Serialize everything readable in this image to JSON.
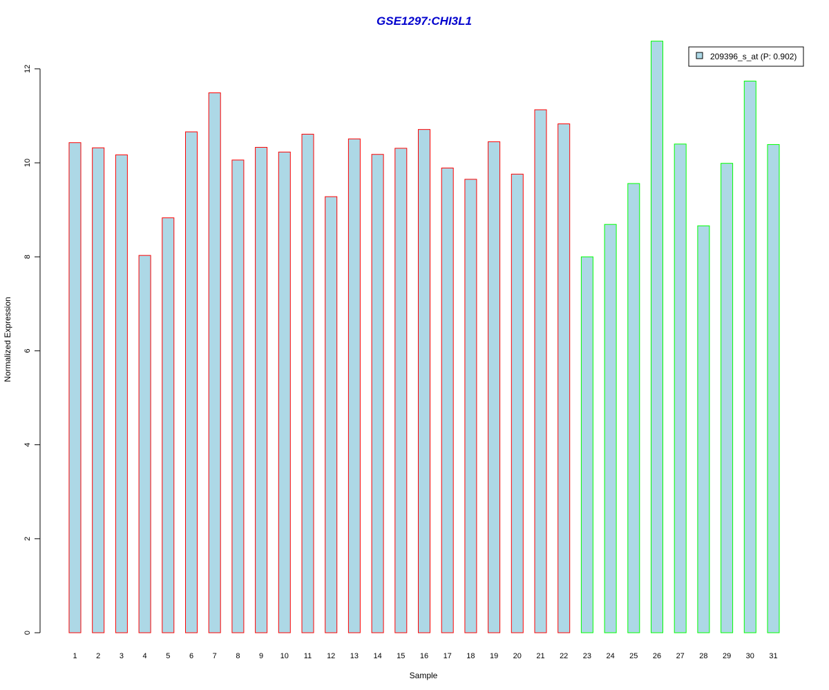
{
  "chart_data": {
    "type": "bar",
    "title": "GSE1297:CHI3L1",
    "xlabel": "Sample",
    "ylabel": "Normalized Expression",
    "categories": [
      "1",
      "2",
      "3",
      "4",
      "5",
      "6",
      "7",
      "8",
      "9",
      "10",
      "11",
      "12",
      "13",
      "14",
      "15",
      "16",
      "17",
      "18",
      "19",
      "20",
      "21",
      "22",
      "23",
      "24",
      "25",
      "26",
      "27",
      "28",
      "29",
      "30",
      "31"
    ],
    "series": [
      {
        "name": "209396_s_at (P: 0.902)",
        "values": [
          10.43,
          10.32,
          10.17,
          8.03,
          8.83,
          10.66,
          11.49,
          10.06,
          10.33,
          10.23,
          10.61,
          9.28,
          10.51,
          10.18,
          10.31,
          10.71,
          9.89,
          9.65,
          10.45,
          9.76,
          11.13,
          10.83,
          8.0,
          8.69,
          9.56,
          12.59,
          10.4,
          8.66,
          9.99,
          11.74,
          10.39
        ]
      }
    ],
    "groups": [
      1,
      1,
      1,
      1,
      1,
      1,
      1,
      1,
      1,
      1,
      1,
      1,
      1,
      1,
      1,
      1,
      1,
      1,
      1,
      1,
      1,
      1,
      2,
      2,
      2,
      2,
      2,
      2,
      2,
      2,
      2
    ],
    "ylim": [
      0,
      12.6
    ],
    "yticks": [
      0,
      2,
      4,
      6,
      8,
      10,
      12
    ],
    "grid": false,
    "legend_position": "top-right",
    "colors": {
      "bar_fill": "#ADD8E6",
      "group1_border": "#FF0000",
      "group2_border": "#00FF00",
      "title": "#0000CD"
    }
  }
}
